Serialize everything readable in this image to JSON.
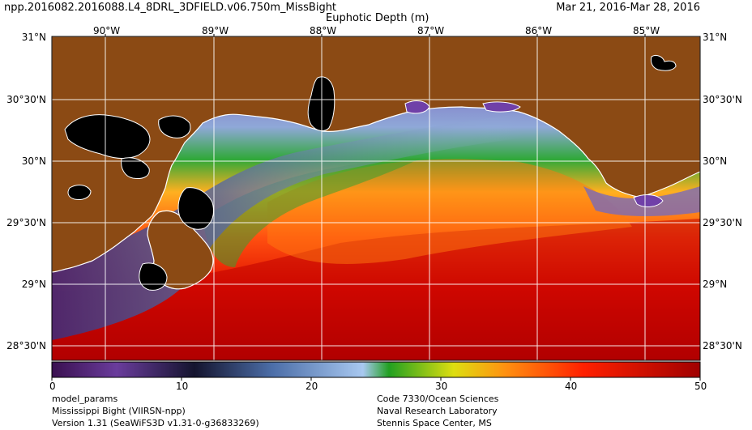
{
  "header": {
    "filename": "npp.2016082.2016088.L4_8DRL_3DFIELD.v06.750m_MissBight",
    "product": "Euphotic Depth (m)",
    "date_range": "Mar 21, 2016-Mar 28, 2016"
  },
  "map": {
    "top_lon_labels": [
      "90°W",
      "89°W",
      "88°W",
      "87°W",
      "86°W",
      "85°W"
    ],
    "left_lat_labels": [
      "31°N",
      "30°30'N",
      "30°N",
      "29°30'N",
      "29°N",
      "28°30'N"
    ],
    "right_lat_labels": [
      "31°N",
      "30°30'N",
      "30°N",
      "29°30'N",
      "29°N",
      "28°30'N"
    ],
    "colors": {
      "land": "#8b4a14",
      "lake": "#000000",
      "coast": "#ffffff",
      "grid": "#ffffff"
    }
  },
  "colorbar": {
    "ticks": [
      "0",
      "10",
      "20",
      "30",
      "40",
      "50"
    ],
    "min": 0,
    "max": 50,
    "stops": [
      "#3a1050",
      "#6a3c9c",
      "#14142e",
      "#4c6ea8",
      "#a8c8f0",
      "#22a022",
      "#dede10",
      "#ff9010",
      "#ff2000",
      "#a00000"
    ]
  },
  "footer": {
    "left": [
      "model_params",
      "Mississippi Bight (VIIRSN-npp)",
      "Version 1.31 (SeaWiFS3D v1.31-0-g36833269)"
    ],
    "right": [
      "Code 7330/Ocean Sciences",
      "Naval Research Laboratory",
      "Stennis Space Center, MS"
    ]
  }
}
